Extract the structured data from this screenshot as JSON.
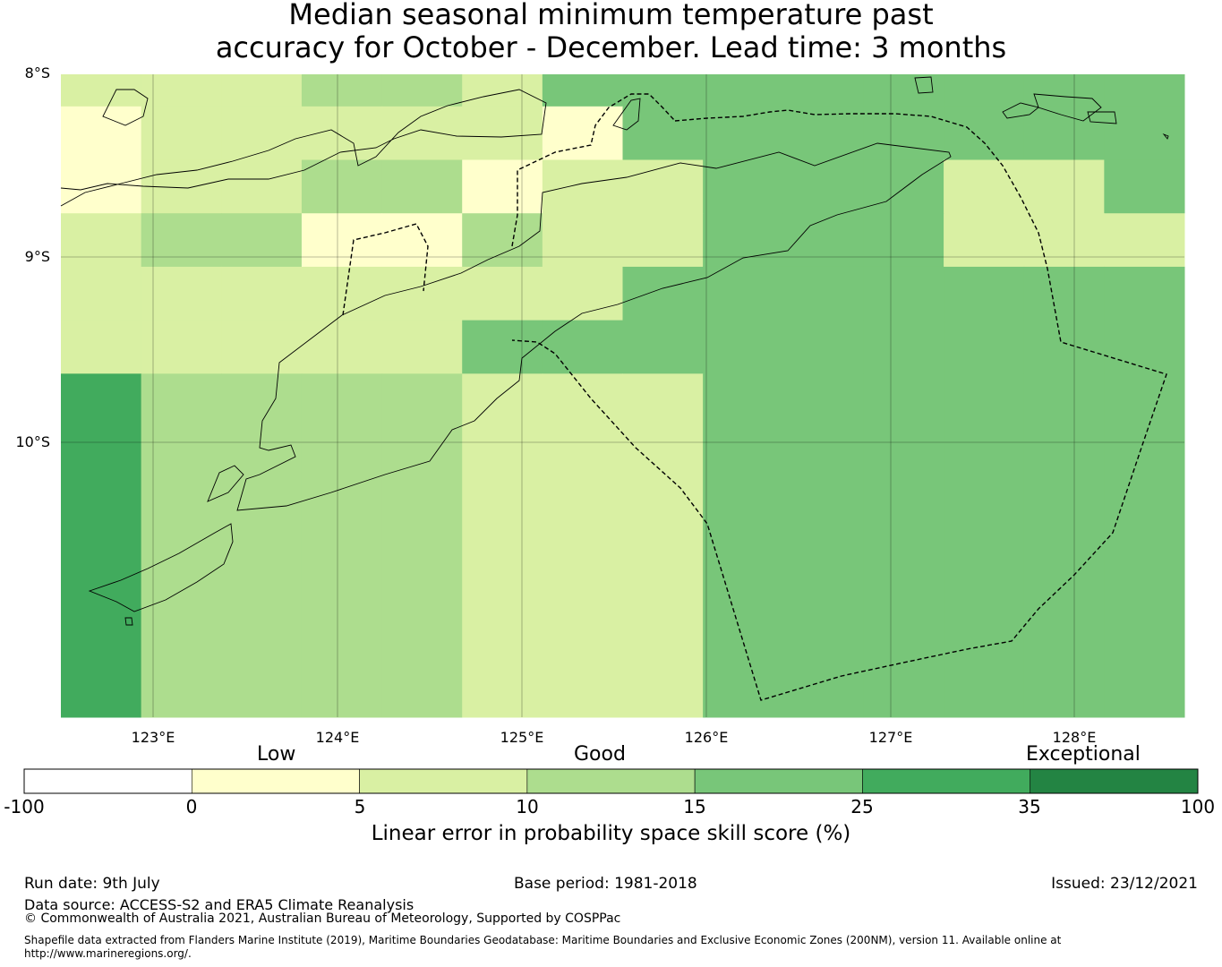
{
  "title": {
    "line1": "Median seasonal minimum temperature past",
    "line2": "accuracy for October - December. Lead time: 3 months"
  },
  "map": {
    "lat_labels": [
      "8°S",
      "9°S",
      "10°S"
    ],
    "lon_labels": [
      "123°E",
      "124°E",
      "125°E",
      "126°E",
      "127°E",
      "128°E"
    ],
    "grid_rows": [
      [
        2,
        2,
        2,
        3,
        3,
        2,
        4,
        4,
        4,
        4,
        4,
        4,
        4,
        4
      ],
      [
        1,
        2,
        2,
        2,
        2,
        2,
        1,
        4,
        4,
        4,
        4,
        4,
        4,
        4
      ],
      [
        1,
        2,
        2,
        3,
        3,
        1,
        2,
        2,
        4,
        4,
        4,
        2,
        2,
        4
      ],
      [
        2,
        3,
        3,
        1,
        1,
        3,
        2,
        2,
        4,
        4,
        4,
        2,
        2,
        2
      ],
      [
        2,
        2,
        2,
        2,
        2,
        2,
        2,
        4,
        4,
        4,
        4,
        4,
        4,
        4
      ],
      [
        2,
        2,
        2,
        2,
        2,
        4,
        4,
        4,
        4,
        4,
        4,
        4,
        4,
        4
      ],
      [
        5,
        3,
        3,
        3,
        3,
        2,
        2,
        2,
        4,
        4,
        4,
        4,
        4,
        4
      ]
    ]
  },
  "colorbar": {
    "colors": [
      "#ffffff",
      "#ffffcc",
      "#d9f0a3",
      "#addd8e",
      "#78c679",
      "#41ab5d",
      "#238443"
    ],
    "ticks": [
      "-100",
      "0",
      "5",
      "10",
      "15",
      "25",
      "35",
      "100"
    ],
    "categories": [
      "Low",
      "Good",
      "Exceptional"
    ],
    "caption": "Linear error in probability space skill score (%)"
  },
  "footer": {
    "run_date": "Run date: 9th July",
    "base_period": "Base period: 1981-2018",
    "issued": "Issued: 23/12/2021",
    "data_source": "Data source: ACCESS-S2 and ERA5 Climate Reanalysis",
    "copyright": "© Commonwealth of Australia 2021, Australian Bureau of Meteorology, Supported by COSPPac",
    "shapefile_line1": "Shapefile data extracted from Flanders Marine Institute (2019), Maritime Boundaries Geodatabase: Maritime Boundaries and Exclusive Economic Zones (200NM), version 11. Available online at",
    "shapefile_line2": "http://www.marineregions.org/."
  }
}
